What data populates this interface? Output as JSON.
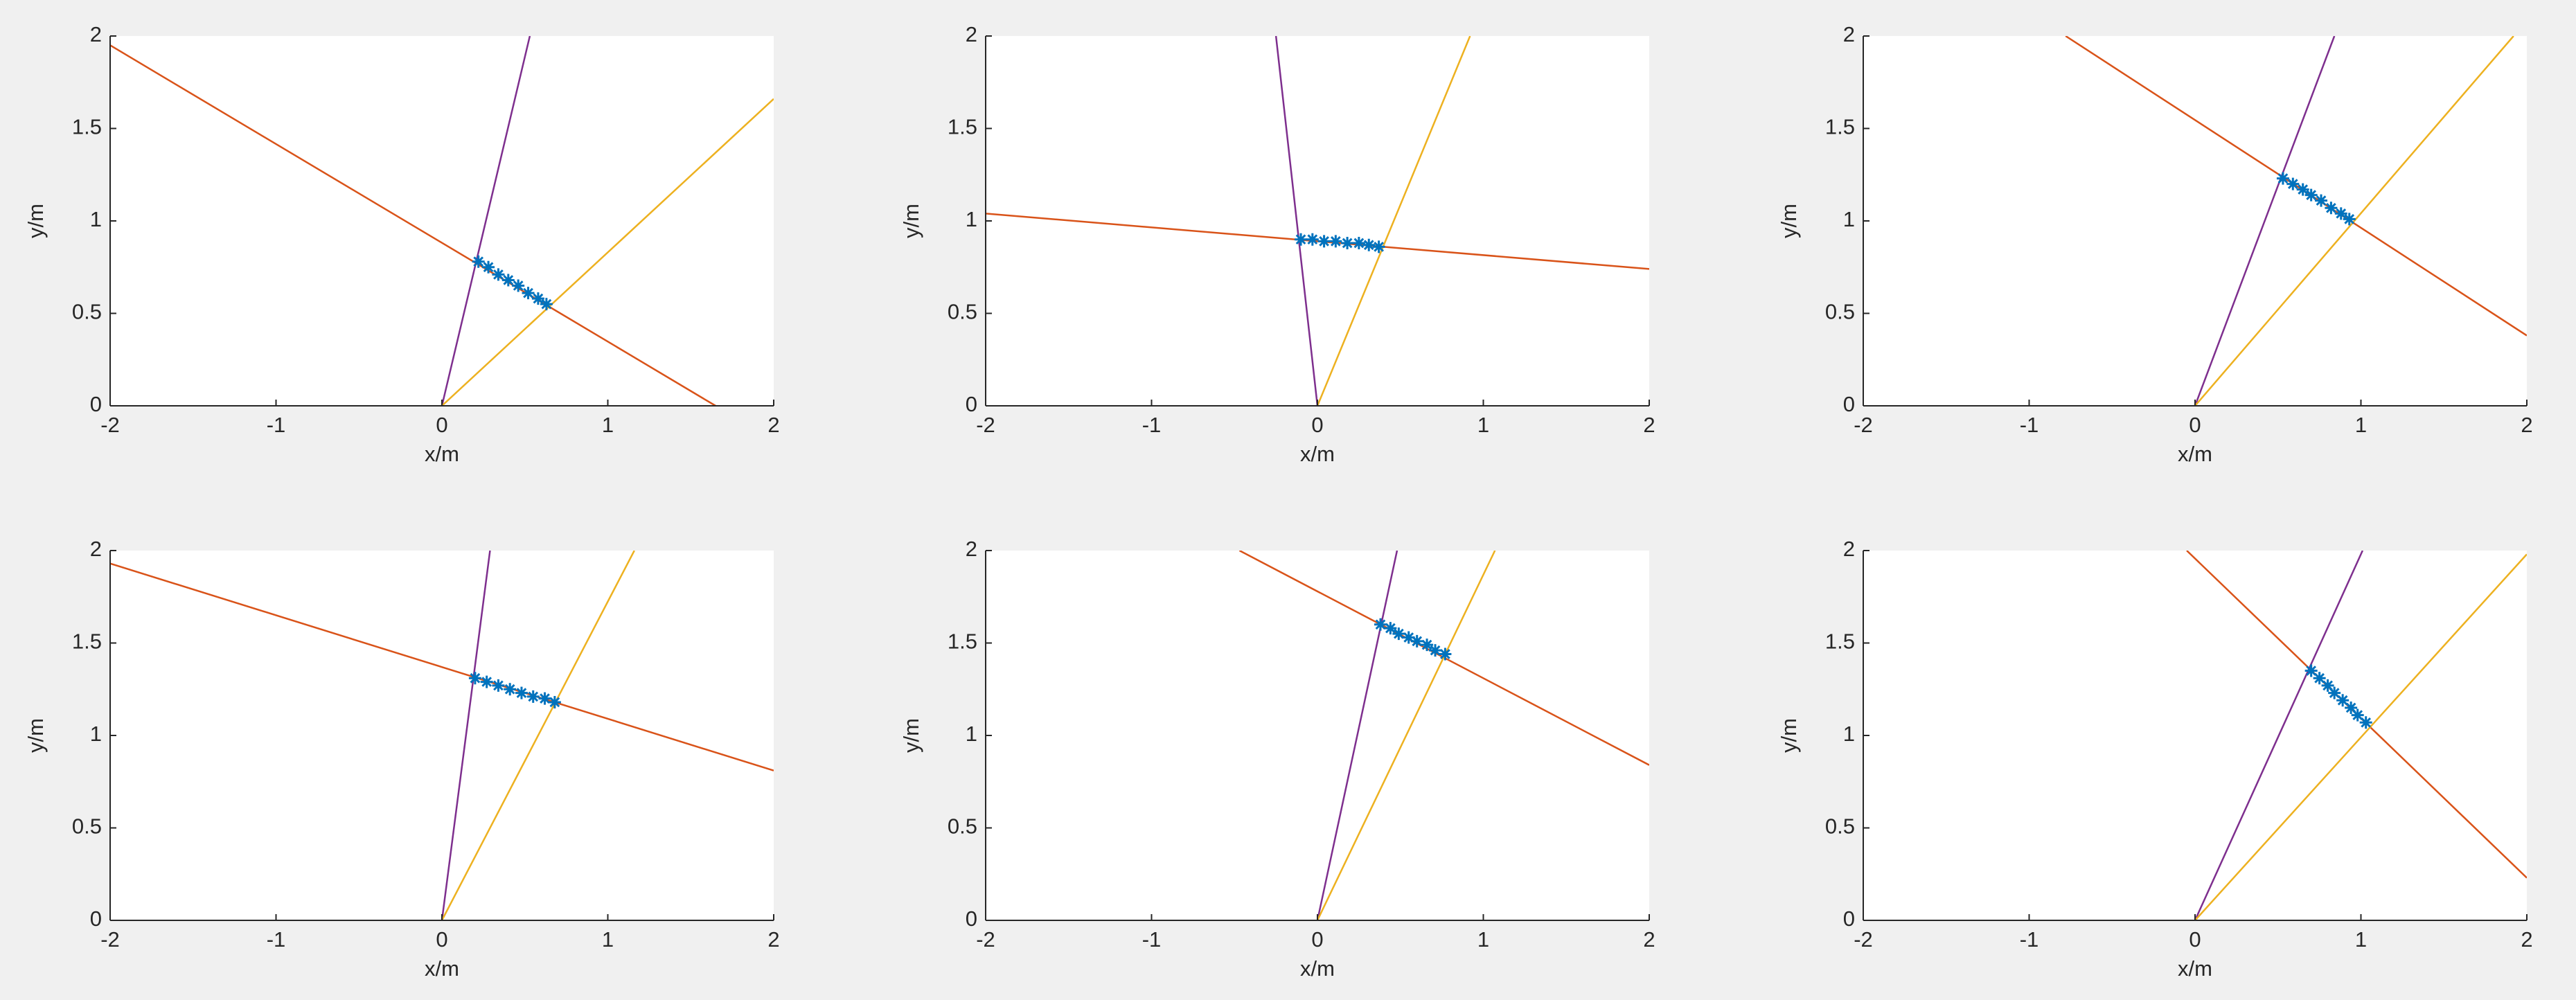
{
  "chart_data": [
    {
      "type": "line",
      "xlabel": "x/m",
      "ylabel": "y/m",
      "xlim": [
        -2,
        2
      ],
      "ylim": [
        0,
        2
      ],
      "xticks": [
        -2,
        -1,
        0,
        1,
        2
      ],
      "yticks": [
        0,
        0.5,
        1,
        1.5,
        2
      ],
      "series": [
        {
          "mode": "line",
          "color": "#D95319",
          "x": [
            -2,
            1.65
          ],
          "values": [
            1.95,
            0
          ]
        },
        {
          "mode": "line",
          "color": "#7E2F8E",
          "x": [
            0,
            0.53
          ],
          "values": [
            0,
            2
          ]
        },
        {
          "mode": "line",
          "color": "#EDB120",
          "x": [
            0,
            2
          ],
          "values": [
            0,
            1.66
          ]
        },
        {
          "mode": "markers",
          "color": "#0072BD",
          "x": [
            0.22,
            0.28,
            0.34,
            0.4,
            0.46,
            0.52,
            0.58,
            0.63
          ],
          "values": [
            0.78,
            0.75,
            0.71,
            0.68,
            0.65,
            0.61,
            0.58,
            0.55
          ]
        }
      ]
    },
    {
      "type": "line",
      "xlabel": "x/m",
      "ylabel": "y/m",
      "xlim": [
        -2,
        2
      ],
      "ylim": [
        0,
        2
      ],
      "xticks": [
        -2,
        -1,
        0,
        1,
        2
      ],
      "yticks": [
        0,
        0.5,
        1,
        1.5,
        2
      ],
      "series": [
        {
          "mode": "line",
          "color": "#D95319",
          "x": [
            -2,
            2
          ],
          "values": [
            1.04,
            0.74
          ]
        },
        {
          "mode": "line",
          "color": "#7E2F8E",
          "x": [
            0,
            -0.25
          ],
          "values": [
            0,
            2
          ]
        },
        {
          "mode": "line",
          "color": "#EDB120",
          "x": [
            0,
            0.92
          ],
          "values": [
            0,
            2
          ]
        },
        {
          "mode": "markers",
          "color": "#0072BD",
          "x": [
            -0.1,
            -0.03,
            0.04,
            0.11,
            0.18,
            0.25,
            0.31,
            0.37
          ],
          "values": [
            0.9,
            0.9,
            0.89,
            0.89,
            0.88,
            0.88,
            0.87,
            0.86
          ]
        }
      ]
    },
    {
      "type": "line",
      "xlabel": "x/m",
      "ylabel": "y/m",
      "xlim": [
        -2,
        2
      ],
      "ylim": [
        0,
        2
      ],
      "xticks": [
        -2,
        -1,
        0,
        1,
        2
      ],
      "yticks": [
        0,
        0.5,
        1,
        1.5,
        2
      ],
      "series": [
        {
          "mode": "line",
          "color": "#D95319",
          "x": [
            -0.78,
            2
          ],
          "values": [
            2,
            0.38
          ]
        },
        {
          "mode": "line",
          "color": "#7E2F8E",
          "x": [
            0,
            0.84
          ],
          "values": [
            0,
            2
          ]
        },
        {
          "mode": "line",
          "color": "#EDB120",
          "x": [
            0,
            1.92
          ],
          "values": [
            0,
            2
          ]
        },
        {
          "mode": "markers",
          "color": "#0072BD",
          "x": [
            0.53,
            0.59,
            0.65,
            0.7,
            0.76,
            0.82,
            0.88,
            0.93
          ],
          "values": [
            1.23,
            1.2,
            1.17,
            1.14,
            1.11,
            1.07,
            1.04,
            1.01
          ]
        }
      ]
    },
    {
      "type": "line",
      "xlabel": "x/m",
      "ylabel": "y/m",
      "xlim": [
        -2,
        2
      ],
      "ylim": [
        0,
        2
      ],
      "xticks": [
        -2,
        -1,
        0,
        1,
        2
      ],
      "yticks": [
        0,
        0.5,
        1,
        1.5,
        2
      ],
      "series": [
        {
          "mode": "line",
          "color": "#D95319",
          "x": [
            -2,
            2
          ],
          "values": [
            1.93,
            0.81
          ]
        },
        {
          "mode": "line",
          "color": "#7E2F8E",
          "x": [
            0,
            0.29
          ],
          "values": [
            0,
            2
          ]
        },
        {
          "mode": "line",
          "color": "#EDB120",
          "x": [
            0,
            1.16
          ],
          "values": [
            0,
            2
          ]
        },
        {
          "mode": "markers",
          "color": "#0072BD",
          "x": [
            0.2,
            0.27,
            0.34,
            0.41,
            0.48,
            0.55,
            0.62,
            0.68
          ],
          "values": [
            1.31,
            1.29,
            1.27,
            1.25,
            1.23,
            1.21,
            1.2,
            1.18
          ]
        }
      ]
    },
    {
      "type": "line",
      "xlabel": "x/m",
      "ylabel": "y/m",
      "xlim": [
        -2,
        2
      ],
      "ylim": [
        0,
        2
      ],
      "xticks": [
        -2,
        -1,
        0,
        1,
        2
      ],
      "yticks": [
        0,
        0.5,
        1,
        1.5,
        2
      ],
      "series": [
        {
          "mode": "line",
          "color": "#D95319",
          "x": [
            -0.47,
            2
          ],
          "values": [
            2,
            0.84
          ]
        },
        {
          "mode": "line",
          "color": "#7E2F8E",
          "x": [
            0,
            0.48
          ],
          "values": [
            0,
            2
          ]
        },
        {
          "mode": "line",
          "color": "#EDB120",
          "x": [
            0,
            1.07
          ],
          "values": [
            0,
            2
          ]
        },
        {
          "mode": "markers",
          "color": "#0072BD",
          "x": [
            0.38,
            0.44,
            0.49,
            0.55,
            0.6,
            0.66,
            0.71,
            0.77
          ],
          "values": [
            1.6,
            1.58,
            1.55,
            1.53,
            1.51,
            1.49,
            1.46,
            1.44
          ]
        }
      ]
    },
    {
      "type": "line",
      "xlabel": "x/m",
      "ylabel": "y/m",
      "xlim": [
        -2,
        2
      ],
      "ylim": [
        0,
        2
      ],
      "xticks": [
        -2,
        -1,
        0,
        1,
        2
      ],
      "yticks": [
        0,
        0.5,
        1,
        1.5,
        2
      ],
      "series": [
        {
          "mode": "line",
          "color": "#D95319",
          "x": [
            -0.05,
            2
          ],
          "values": [
            2,
            0.23
          ]
        },
        {
          "mode": "line",
          "color": "#7E2F8E",
          "x": [
            0,
            1.01
          ],
          "values": [
            0,
            2
          ]
        },
        {
          "mode": "line",
          "color": "#EDB120",
          "x": [
            0,
            2
          ],
          "values": [
            0,
            1.98
          ]
        },
        {
          "mode": "markers",
          "color": "#0072BD",
          "x": [
            0.7,
            0.75,
            0.8,
            0.84,
            0.89,
            0.94,
            0.98,
            1.03
          ],
          "values": [
            1.35,
            1.31,
            1.27,
            1.23,
            1.19,
            1.15,
            1.11,
            1.07
          ]
        }
      ]
    }
  ]
}
